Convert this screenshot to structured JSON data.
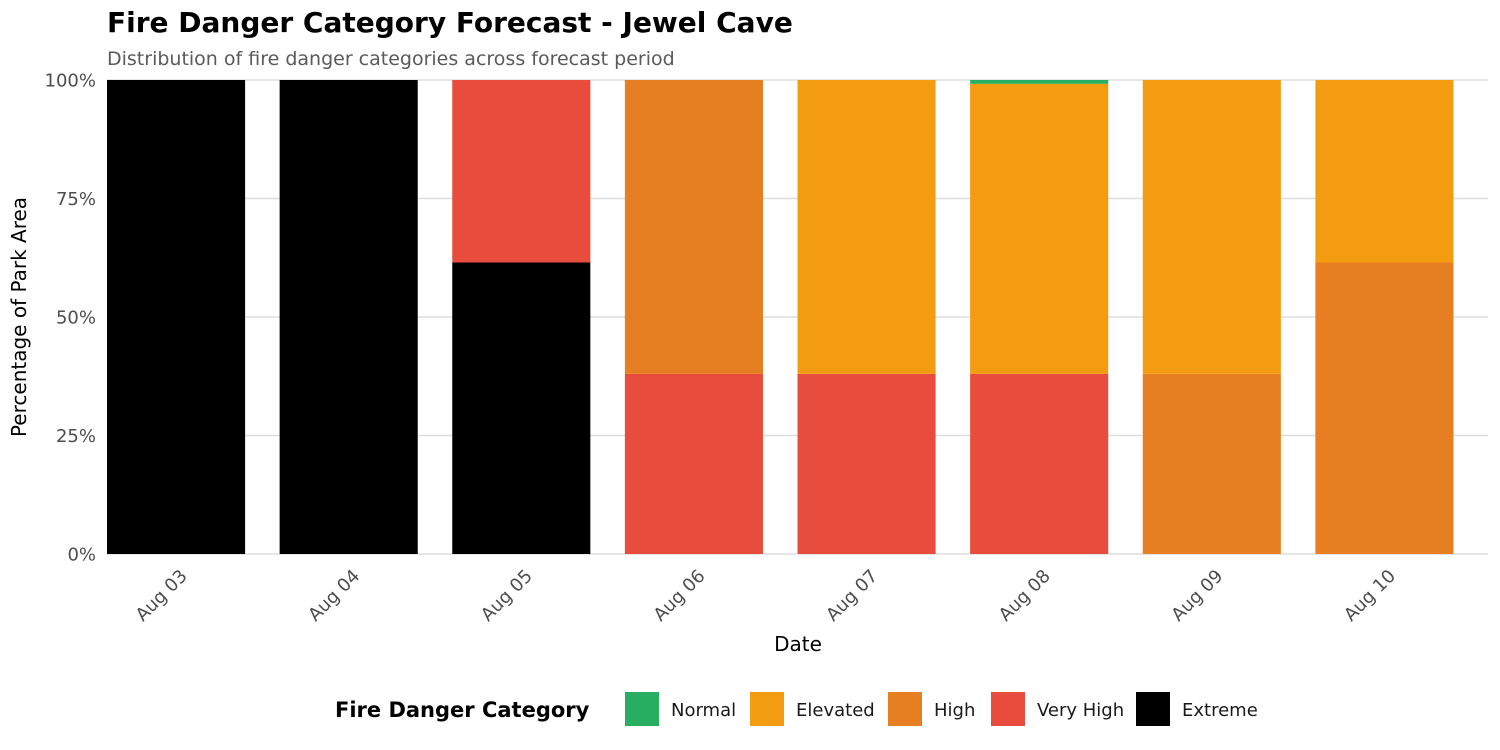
{
  "chart_data": {
    "type": "bar",
    "stacked": true,
    "title": "Fire Danger Category Forecast - Jewel Cave",
    "subtitle": "Distribution of fire danger categories across forecast period",
    "xlabel": "Date",
    "ylabel": "Percentage of Park Area",
    "ylim": [
      0,
      100
    ],
    "y_ticks": [
      "0%",
      "25%",
      "50%",
      "75%",
      "100%"
    ],
    "grid": true,
    "categories": [
      "Aug 03",
      "Aug 04",
      "Aug 05",
      "Aug 06",
      "Aug 07",
      "Aug 08",
      "Aug 09",
      "Aug 10"
    ],
    "legend": {
      "title": "Fire Danger Category",
      "position": "bottom"
    },
    "series": [
      {
        "name": "Extreme",
        "color": "#000000",
        "values": [
          100,
          100,
          61.5,
          0,
          0,
          0,
          0,
          0
        ]
      },
      {
        "name": "Very High",
        "color": "#E74C3C",
        "values": [
          0,
          0,
          38.5,
          38.0,
          38.0,
          38.0,
          0,
          0
        ]
      },
      {
        "name": "High",
        "color": "#E67E22",
        "values": [
          0,
          0,
          0,
          62.0,
          0,
          0,
          38.0,
          61.5
        ]
      },
      {
        "name": "Elevated",
        "color": "#F39C12",
        "values": [
          0,
          0,
          0,
          0,
          62.0,
          61.2,
          62.0,
          38.5
        ]
      },
      {
        "name": "Normal",
        "color": "#27AE60",
        "values": [
          0,
          0,
          0,
          0,
          0,
          0.8,
          0,
          0
        ]
      }
    ],
    "legend_order": [
      "Normal",
      "Elevated",
      "High",
      "Very High",
      "Extreme"
    ]
  }
}
